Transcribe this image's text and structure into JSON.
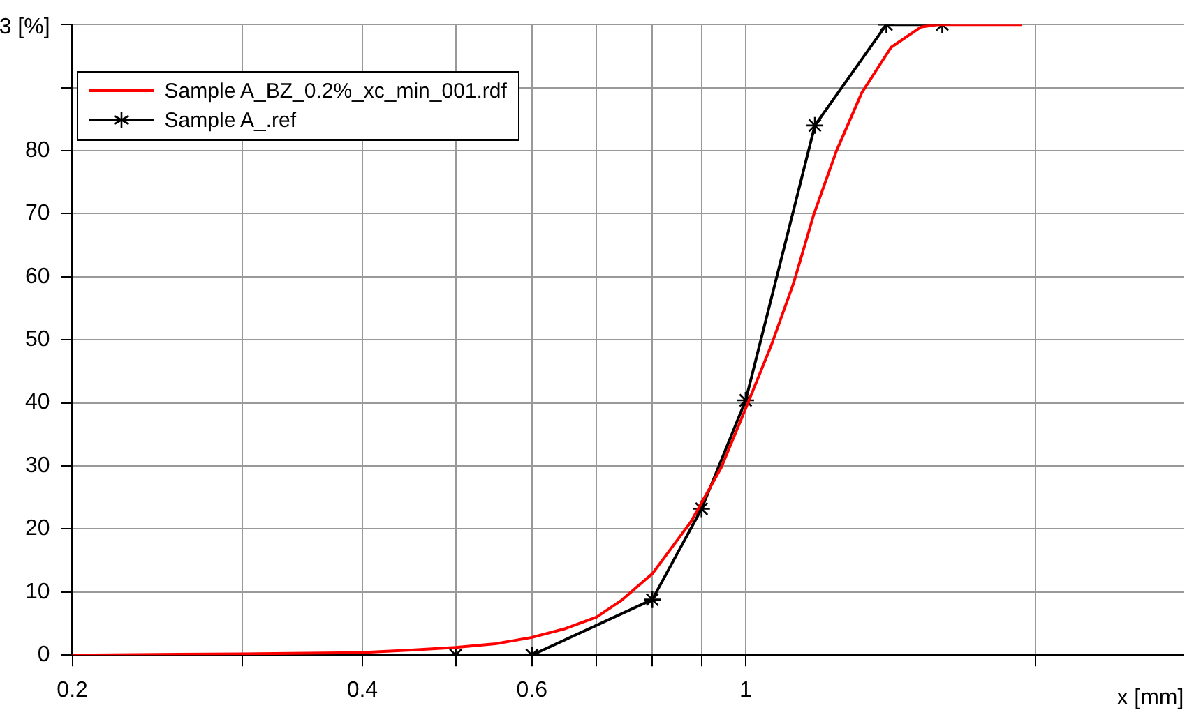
{
  "chart_data": {
    "type": "line",
    "xlabel": "x [mm]",
    "log": "x",
    "xlim": [
      0.2,
      2.85
    ],
    "xticks": [
      0.2,
      {
        "value": 0.3,
        "label": null
      },
      0.4,
      {
        "value": 0.5,
        "label": null
      },
      0.6,
      {
        "value": 0.7,
        "label": null
      },
      {
        "value": 0.8,
        "label": null
      },
      {
        "value": 0.9,
        "label": null
      },
      1,
      {
        "value": 2,
        "label": null
      }
    ],
    "ylim": [
      0,
      100
    ],
    "yticks": [
      0,
      10,
      20,
      30,
      40,
      50,
      60,
      70,
      80,
      {
        "value": 90,
        "label": null
      },
      {
        "value": 100,
        "label": null
      }
    ],
    "ylabel": "3 [%]",
    "grid": true,
    "legend": "top left",
    "line_style": "solid",
    "series": [
      {
        "name": "Sample A_BZ_0.2%_xc_min_001.rdf",
        "color": "#ff0000",
        "marker": "none",
        "x": [
          0.2,
          0.3,
          0.4,
          0.45,
          0.5,
          0.55,
          0.6,
          0.65,
          0.7,
          0.742,
          0.8,
          0.877,
          0.943,
          1.0,
          1.063,
          1.122,
          1.177,
          1.242,
          1.32,
          1.416,
          1.52,
          1.58,
          1.934
        ],
        "values": [
          0,
          0.2,
          0.4,
          0.8,
          1.2,
          1.8,
          2.8,
          4.2,
          6.0,
          8.6,
          12.9,
          21.1,
          29.7,
          39.1,
          49.1,
          59.1,
          69.9,
          79.9,
          89.2,
          96.4,
          99.6,
          100,
          100
        ]
      },
      {
        "name": "Sample A_.ref",
        "color": "#000000",
        "marker": "cross",
        "x": [
          0.5,
          0.6,
          0.8,
          0.9,
          1.0,
          1.18,
          1.4,
          1.6
        ],
        "values": [
          0,
          0,
          8.8,
          23.2,
          40.4,
          84,
          100,
          100
        ]
      }
    ]
  }
}
